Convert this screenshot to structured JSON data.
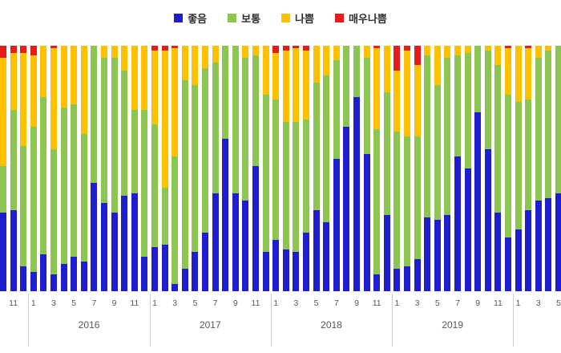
{
  "legend": {
    "items": [
      {
        "label": "좋음",
        "color": "#1E1ECF"
      },
      {
        "label": "보통",
        "color": "#8CC650"
      },
      {
        "label": "나쁨",
        "color": "#FFC000"
      },
      {
        "label": "매우나쁨",
        "color": "#E51C1C"
      }
    ]
  },
  "chart_data": {
    "type": "bar",
    "stacked": true,
    "percent_stacked": true,
    "orientation": "vertical",
    "title": "",
    "xlabel": "",
    "ylabel": "",
    "ylim": [
      0,
      100
    ],
    "grid": false,
    "legend_position": "top",
    "x_axis_note": "monthly bars Oct 2015 - May 2020, odd months labeled, grouped by year",
    "categories": [
      "2015-10",
      "2015-11",
      "2015-12",
      "2016-01",
      "2016-02",
      "2016-03",
      "2016-04",
      "2016-05",
      "2016-06",
      "2016-07",
      "2016-08",
      "2016-09",
      "2016-10",
      "2016-11",
      "2016-12",
      "2017-01",
      "2017-02",
      "2017-03",
      "2017-04",
      "2017-05",
      "2017-06",
      "2017-07",
      "2017-08",
      "2017-09",
      "2017-10",
      "2017-11",
      "2017-12",
      "2018-01",
      "2018-02",
      "2018-03",
      "2018-04",
      "2018-05",
      "2018-06",
      "2018-07",
      "2018-08",
      "2018-09",
      "2018-10",
      "2018-11",
      "2018-12",
      "2019-01",
      "2019-02",
      "2019-03",
      "2019-04",
      "2019-05",
      "2019-06",
      "2019-07",
      "2019-08",
      "2019-09",
      "2019-10",
      "2019-11",
      "2019-12",
      "2020-01",
      "2020-02",
      "2020-03",
      "2020-04",
      "2020-05"
    ],
    "x_tick_labels": [
      "",
      "11",
      "",
      "1",
      "",
      "3",
      "",
      "5",
      "",
      "7",
      "",
      "9",
      "",
      "11",
      "",
      "1",
      "",
      "3",
      "",
      "5",
      "",
      "7",
      "",
      "9",
      "",
      "11",
      "",
      "1",
      "",
      "3",
      "",
      "5",
      "",
      "7",
      "",
      "9",
      "",
      "11",
      "",
      "1",
      "",
      "3",
      "",
      "5",
      "",
      "7",
      "",
      "9",
      "",
      "11",
      "",
      "1",
      "",
      "3",
      "",
      "5"
    ],
    "series": [
      {
        "name": "좋음",
        "color": "#1E1ECF",
        "values": [
          32,
          33,
          10,
          8,
          15,
          7,
          11,
          14,
          12,
          44,
          36,
          32,
          39,
          40,
          14,
          18,
          19,
          3,
          9,
          16,
          24,
          40,
          62,
          40,
          37,
          51,
          16,
          21,
          17,
          16,
          24,
          33,
          28,
          54,
          67,
          79,
          56,
          7,
          31,
          9,
          10,
          13,
          30,
          29,
          31,
          55,
          50,
          73,
          58,
          32,
          22,
          25,
          33,
          37,
          38,
          40
        ]
      },
      {
        "name": "보통",
        "color": "#8CC650",
        "values": [
          19,
          41,
          49,
          59,
          64,
          51,
          64,
          62,
          52,
          56,
          59,
          63,
          51,
          34,
          60,
          50,
          23,
          52,
          77,
          68,
          67,
          53,
          38,
          60,
          58,
          45,
          64,
          57,
          52,
          53,
          46,
          52,
          60,
          40,
          33,
          21,
          39,
          59,
          50,
          56,
          53,
          50,
          66,
          55,
          64,
          41,
          47,
          27,
          40,
          60,
          58,
          52,
          45,
          58,
          60,
          60
        ]
      },
      {
        "name": "나쁨",
        "color": "#FFC000",
        "values": [
          44,
          23,
          38,
          29,
          21,
          41,
          25,
          24,
          36,
          0,
          5,
          5,
          10,
          26,
          26,
          30,
          56,
          44,
          14,
          16,
          9,
          7,
          0,
          0,
          5,
          4,
          20,
          19,
          29,
          30,
          28,
          15,
          12,
          6,
          0,
          0,
          5,
          33,
          19,
          25,
          35,
          29,
          4,
          16,
          5,
          4,
          3,
          0,
          2,
          8,
          19,
          23,
          21,
          5,
          2,
          0
        ]
      },
      {
        "name": "매우나쁨",
        "color": "#E51C1C",
        "values": [
          5,
          3,
          3,
          4,
          0,
          1,
          0,
          0,
          0,
          0,
          0,
          0,
          0,
          0,
          0,
          2,
          2,
          1,
          0,
          0,
          0,
          0,
          0,
          0,
          0,
          0,
          0,
          3,
          2,
          1,
          2,
          0,
          0,
          0,
          0,
          0,
          0,
          1,
          0,
          10,
          2,
          8,
          0,
          0,
          0,
          0,
          0,
          0,
          0,
          0,
          1,
          0,
          1,
          0,
          0,
          0
        ]
      }
    ],
    "year_groups": [
      {
        "label": "2016",
        "start_index": 3,
        "end_index": 14
      },
      {
        "label": "2017",
        "start_index": 15,
        "end_index": 26
      },
      {
        "label": "2018",
        "start_index": 27,
        "end_index": 38
      },
      {
        "label": "2019",
        "start_index": 39,
        "end_index": 50
      }
    ],
    "year_divider_indices": [
      3,
      15,
      27,
      39,
      51
    ]
  },
  "colors": {
    "background": "#ffffff",
    "tick_text": "#595959",
    "legend_text": "#2e2e2e",
    "divider": "#cfcfcf"
  }
}
